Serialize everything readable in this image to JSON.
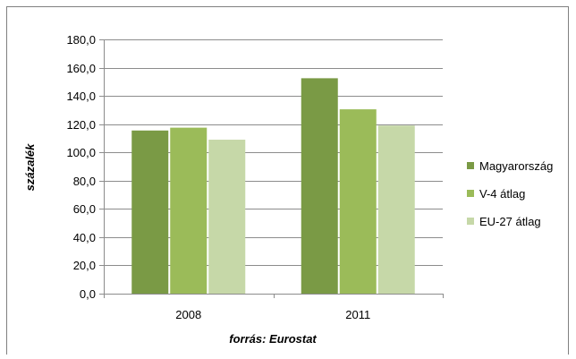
{
  "chart_data": {
    "type": "bar",
    "categories": [
      "2008",
      "2011"
    ],
    "series": [
      {
        "name": "Magyarország",
        "color": "#7a9a45",
        "values": [
          115.5,
          152.5
        ]
      },
      {
        "name": "V-4 átlag",
        "color": "#9bbb59",
        "values": [
          117.5,
          130.5
        ]
      },
      {
        "name": "EU-27 átlag",
        "color": "#c6d8a8",
        "values": [
          109.0,
          119.0
        ]
      }
    ],
    "ylabel": "százalék",
    "xlabel": "forrás: Eurostat",
    "ylim": [
      0,
      180
    ],
    "yticks": [
      "0,0",
      "20,0",
      "40,0",
      "60,0",
      "80,0",
      "100,0",
      "120,0",
      "140,0",
      "160,0",
      "180,0"
    ],
    "grid": true,
    "legend": "right"
  }
}
